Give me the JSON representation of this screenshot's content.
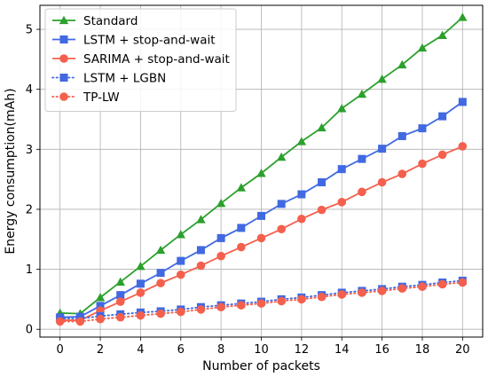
{
  "chart_data": {
    "type": "line",
    "xlabel": "Number of packets",
    "ylabel": "Energy consumption(mAh)",
    "xlim": [
      -1,
      21
    ],
    "ylim": [
      -0.13,
      5.4
    ],
    "xticks": [
      0,
      2,
      4,
      6,
      8,
      10,
      12,
      14,
      16,
      18,
      20
    ],
    "yticks": [
      0,
      1,
      2,
      3,
      4,
      5
    ],
    "grid": true,
    "legend_position": "top-left",
    "x": [
      0,
      1,
      2,
      3,
      4,
      5,
      6,
      7,
      8,
      9,
      10,
      11,
      12,
      13,
      14,
      15,
      16,
      17,
      18,
      19,
      20
    ],
    "series": [
      {
        "name": "Standard",
        "color": "#2ca02c",
        "marker": "triangle",
        "dash": "solid",
        "values": [
          0.27,
          0.26,
          0.53,
          0.79,
          1.05,
          1.32,
          1.58,
          1.83,
          2.1,
          2.36,
          2.6,
          2.87,
          3.13,
          3.36,
          3.68,
          3.92,
          4.17,
          4.41,
          4.69,
          4.9,
          5.2
        ]
      },
      {
        "name": "LSTM + stop-and-wait",
        "color": "#4169e1",
        "marker": "square",
        "dash": "solid",
        "values": [
          0.2,
          0.21,
          0.39,
          0.57,
          0.76,
          0.94,
          1.14,
          1.32,
          1.52,
          1.69,
          1.89,
          2.09,
          2.25,
          2.45,
          2.67,
          2.84,
          3.01,
          3.22,
          3.35,
          3.55,
          3.79
        ]
      },
      {
        "name": "SARIMA + stop-and-wait",
        "color": "#f4604d",
        "marker": "circle",
        "dash": "solid",
        "values": [
          0.15,
          0.15,
          0.31,
          0.46,
          0.61,
          0.77,
          0.91,
          1.06,
          1.22,
          1.37,
          1.52,
          1.67,
          1.84,
          1.99,
          2.12,
          2.29,
          2.45,
          2.59,
          2.76,
          2.91,
          3.05
        ]
      },
      {
        "name": "LSTM + LGBN",
        "color": "#4169e1",
        "marker": "square",
        "dash": "dotted",
        "values": [
          0.18,
          0.18,
          0.22,
          0.25,
          0.28,
          0.3,
          0.33,
          0.37,
          0.4,
          0.43,
          0.46,
          0.5,
          0.53,
          0.57,
          0.61,
          0.64,
          0.67,
          0.71,
          0.74,
          0.78,
          0.81
        ]
      },
      {
        "name": "TP-LW",
        "color": "#f4604d",
        "marker": "circle",
        "dash": "dotted",
        "values": [
          0.13,
          0.13,
          0.17,
          0.2,
          0.23,
          0.26,
          0.29,
          0.33,
          0.37,
          0.4,
          0.43,
          0.47,
          0.5,
          0.54,
          0.58,
          0.61,
          0.64,
          0.68,
          0.71,
          0.75,
          0.78
        ]
      }
    ]
  }
}
